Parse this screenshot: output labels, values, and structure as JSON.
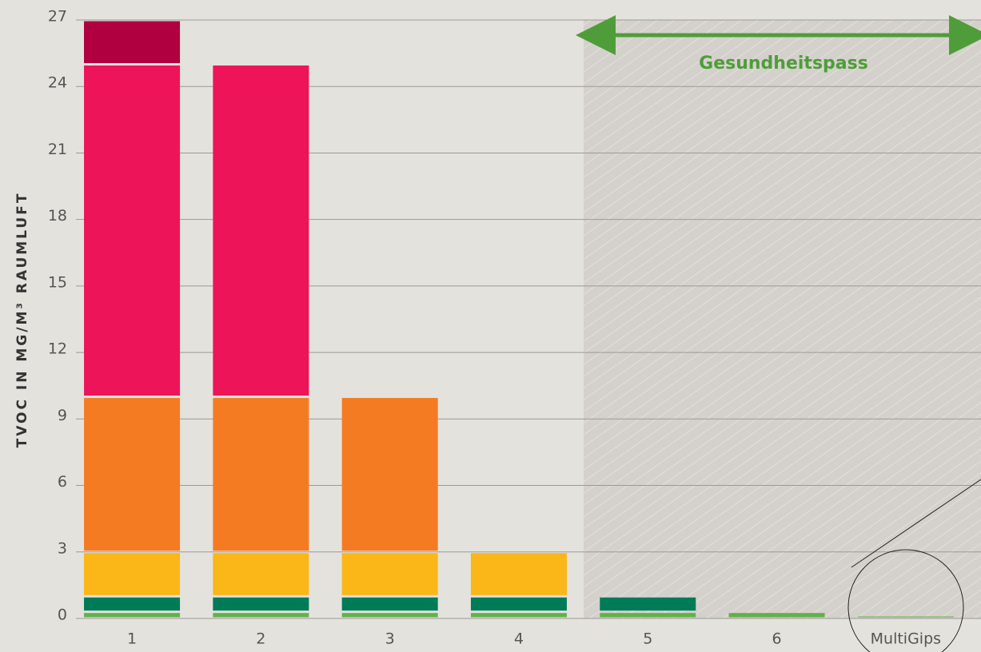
{
  "chart_data": {
    "type": "stacked_bar",
    "y_label": "TVOC IN MG/M³ RAUMLUFT",
    "annotation": "Gesundheitspass",
    "categories": [
      "1",
      "2",
      "3",
      "4",
      "5",
      "6",
      "MultiGips"
    ],
    "series": [
      {
        "color": "#62b14a",
        "values": [
          0.3,
          0.3,
          0.3,
          0.3,
          0.3,
          0.3,
          0.05
        ]
      },
      {
        "color": "#007b57",
        "values": [
          0.7,
          0.7,
          0.7,
          0.7,
          0.7,
          null,
          null
        ]
      },
      {
        "color": "#fbb617",
        "values": [
          2,
          2,
          2,
          2,
          null,
          null,
          null
        ]
      },
      {
        "color": "#f47b22",
        "values": [
          7,
          7,
          7,
          null,
          null,
          null,
          null
        ]
      },
      {
        "color": "#ed1459",
        "values": [
          15,
          15,
          null,
          null,
          null,
          null,
          null
        ]
      },
      {
        "color": "#b0003f",
        "values": [
          2,
          null,
          null,
          null,
          null,
          null,
          null
        ]
      }
    ],
    "ylim": [
      0,
      27
    ],
    "yticks": [
      0,
      3,
      6,
      9,
      12,
      15,
      18,
      21,
      24,
      27
    ],
    "grid": true
  }
}
